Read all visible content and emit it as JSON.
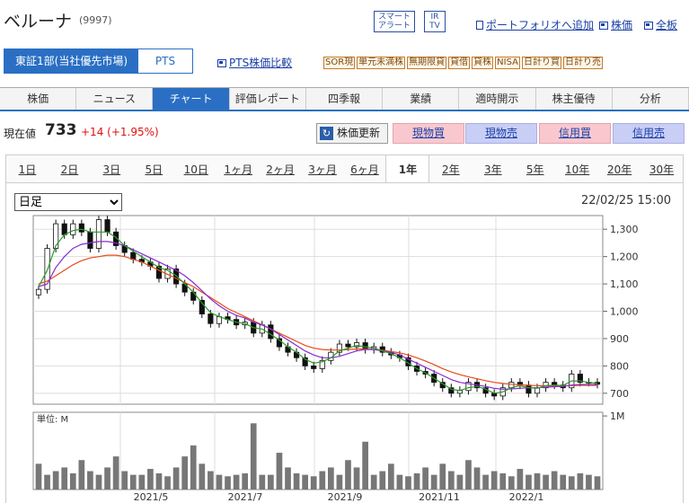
{
  "stock": {
    "name": "ベルーナ",
    "code": "(9997)"
  },
  "header_buttons": {
    "alert": "スマート\nアラート",
    "irtv": "IR\nTV"
  },
  "header_links": {
    "portfolio": "ポートフォリオへ追加",
    "price": "株価",
    "all": "全板"
  },
  "market_tabs": {
    "tse": "東証1部(当社優先市場)",
    "pts": "PTS"
  },
  "pts_link": "PTS株価比較",
  "badges": [
    "SOR現",
    "単元未満株",
    "無期限貸",
    "貸借",
    "貸株",
    "NISA",
    "日計り買",
    "日計り売"
  ],
  "nav": [
    "株価",
    "ニュース",
    "チャート",
    "評価レポート",
    "四季報",
    "業績",
    "適時開示",
    "株主優待",
    "分析"
  ],
  "nav_active": 2,
  "price": {
    "label": "現在値",
    "value": "733",
    "change": "+14 (+1.95%)"
  },
  "refresh_label": "株価更新",
  "trade_buttons": [
    "現物買",
    "現物売",
    "信用買",
    "信用売"
  ],
  "periods": [
    "1日",
    "2日",
    "3日",
    "5日",
    "10日",
    "1ヶ月",
    "2ヶ月",
    "3ヶ月",
    "6ヶ月",
    "1年",
    "2年",
    "3年",
    "5年",
    "10年",
    "20年",
    "30年"
  ],
  "period_active": 9,
  "interval": {
    "selected": "日足"
  },
  "timestamp": "22/02/25 15:00",
  "chart_data": {
    "type": "line",
    "price_ticks": [
      "1,300",
      "1,200",
      "1,100",
      "1,000",
      "900",
      "800",
      "700"
    ],
    "price_tick_values": [
      1300,
      1200,
      1100,
      1000,
      900,
      800,
      700
    ],
    "ylim": [
      660,
      1350
    ],
    "volume_unit_label": "単位: M",
    "volume_ticks": [
      "1M"
    ],
    "volume_ylim": [
      0,
      1.05
    ],
    "x_tick_labels": [
      "2021/5",
      "2021/7",
      "2021/9",
      "2021/11",
      "2022/1"
    ],
    "colors": {
      "candle_up": "#ffffff",
      "candle_down": "#111111",
      "ma_short": "#2a9a2a",
      "ma_mid": "#8a2ad0",
      "ma_long": "#e84a1a",
      "volume": "#777777"
    },
    "price_path": [
      1080,
      1230,
      1320,
      1280,
      1320,
      1290,
      1230,
      1335,
      1290,
      1240,
      1215,
      1190,
      1180,
      1165,
      1120,
      1155,
      1100,
      1070,
      1040,
      990,
      955,
      980,
      970,
      950,
      960,
      920,
      950,
      900,
      870,
      850,
      830,
      800,
      790,
      820,
      850,
      880,
      870,
      885,
      860,
      870,
      850,
      840,
      830,
      800,
      780,
      770,
      740,
      720,
      700,
      710,
      740,
      720,
      700,
      690,
      720,
      740,
      730,
      700,
      720,
      740,
      730,
      720,
      770,
      740,
      740,
      733
    ],
    "ma_short": [
      1090,
      1150,
      1240,
      1280,
      1295,
      1300,
      1290,
      1290,
      1290,
      1270,
      1240,
      1220,
      1200,
      1180,
      1160,
      1150,
      1130,
      1100,
      1070,
      1030,
      995,
      980,
      970,
      960,
      955,
      940,
      935,
      915,
      895,
      870,
      850,
      825,
      810,
      815,
      830,
      855,
      865,
      875,
      870,
      865,
      855,
      845,
      830,
      810,
      790,
      775,
      755,
      735,
      715,
      710,
      720,
      725,
      715,
      700,
      705,
      720,
      728,
      720,
      718,
      728,
      730,
      728,
      745,
      745,
      740,
      736
    ],
    "ma_mid": [
      1090,
      1100,
      1160,
      1200,
      1230,
      1245,
      1250,
      1255,
      1255,
      1250,
      1240,
      1225,
      1210,
      1195,
      1180,
      1165,
      1150,
      1130,
      1105,
      1075,
      1045,
      1020,
      1000,
      985,
      975,
      960,
      950,
      935,
      915,
      895,
      875,
      855,
      840,
      830,
      830,
      835,
      845,
      855,
      860,
      860,
      855,
      850,
      840,
      825,
      810,
      795,
      780,
      765,
      750,
      740,
      735,
      730,
      725,
      718,
      715,
      716,
      718,
      720,
      720,
      722,
      724,
      725,
      730,
      732,
      732,
      732
    ],
    "ma_long": [
      1100,
      1110,
      1130,
      1150,
      1170,
      1185,
      1195,
      1200,
      1205,
      1205,
      1200,
      1190,
      1180,
      1165,
      1150,
      1135,
      1120,
      1105,
      1090,
      1070,
      1050,
      1030,
      1010,
      995,
      980,
      965,
      950,
      935,
      920,
      905,
      890,
      875,
      865,
      860,
      858,
      858,
      860,
      862,
      862,
      860,
      857,
      853,
      848,
      840,
      830,
      818,
      805,
      790,
      778,
      768,
      760,
      753,
      746,
      740,
      736,
      733,
      731,
      729,
      728,
      727,
      727,
      727,
      728,
      729,
      729,
      729
    ],
    "volume": [
      0.35,
      0.2,
      0.25,
      0.3,
      0.22,
      0.4,
      0.25,
      0.2,
      0.3,
      0.45,
      0.25,
      0.2,
      0.2,
      0.28,
      0.22,
      0.18,
      0.3,
      0.45,
      0.6,
      0.35,
      0.25,
      0.2,
      0.18,
      0.2,
      0.22,
      0.9,
      0.2,
      0.2,
      0.5,
      0.3,
      0.22,
      0.2,
      0.18,
      0.25,
      0.3,
      0.2,
      0.4,
      0.3,
      0.65,
      0.2,
      0.25,
      0.35,
      0.2,
      0.18,
      0.22,
      0.3,
      0.2,
      0.35,
      0.25,
      0.2,
      0.4,
      0.3,
      0.2,
      0.25,
      0.22,
      0.18,
      0.28,
      0.2,
      0.22,
      0.2,
      0.25,
      0.2,
      0.18,
      0.22,
      0.2,
      0.18
    ]
  }
}
